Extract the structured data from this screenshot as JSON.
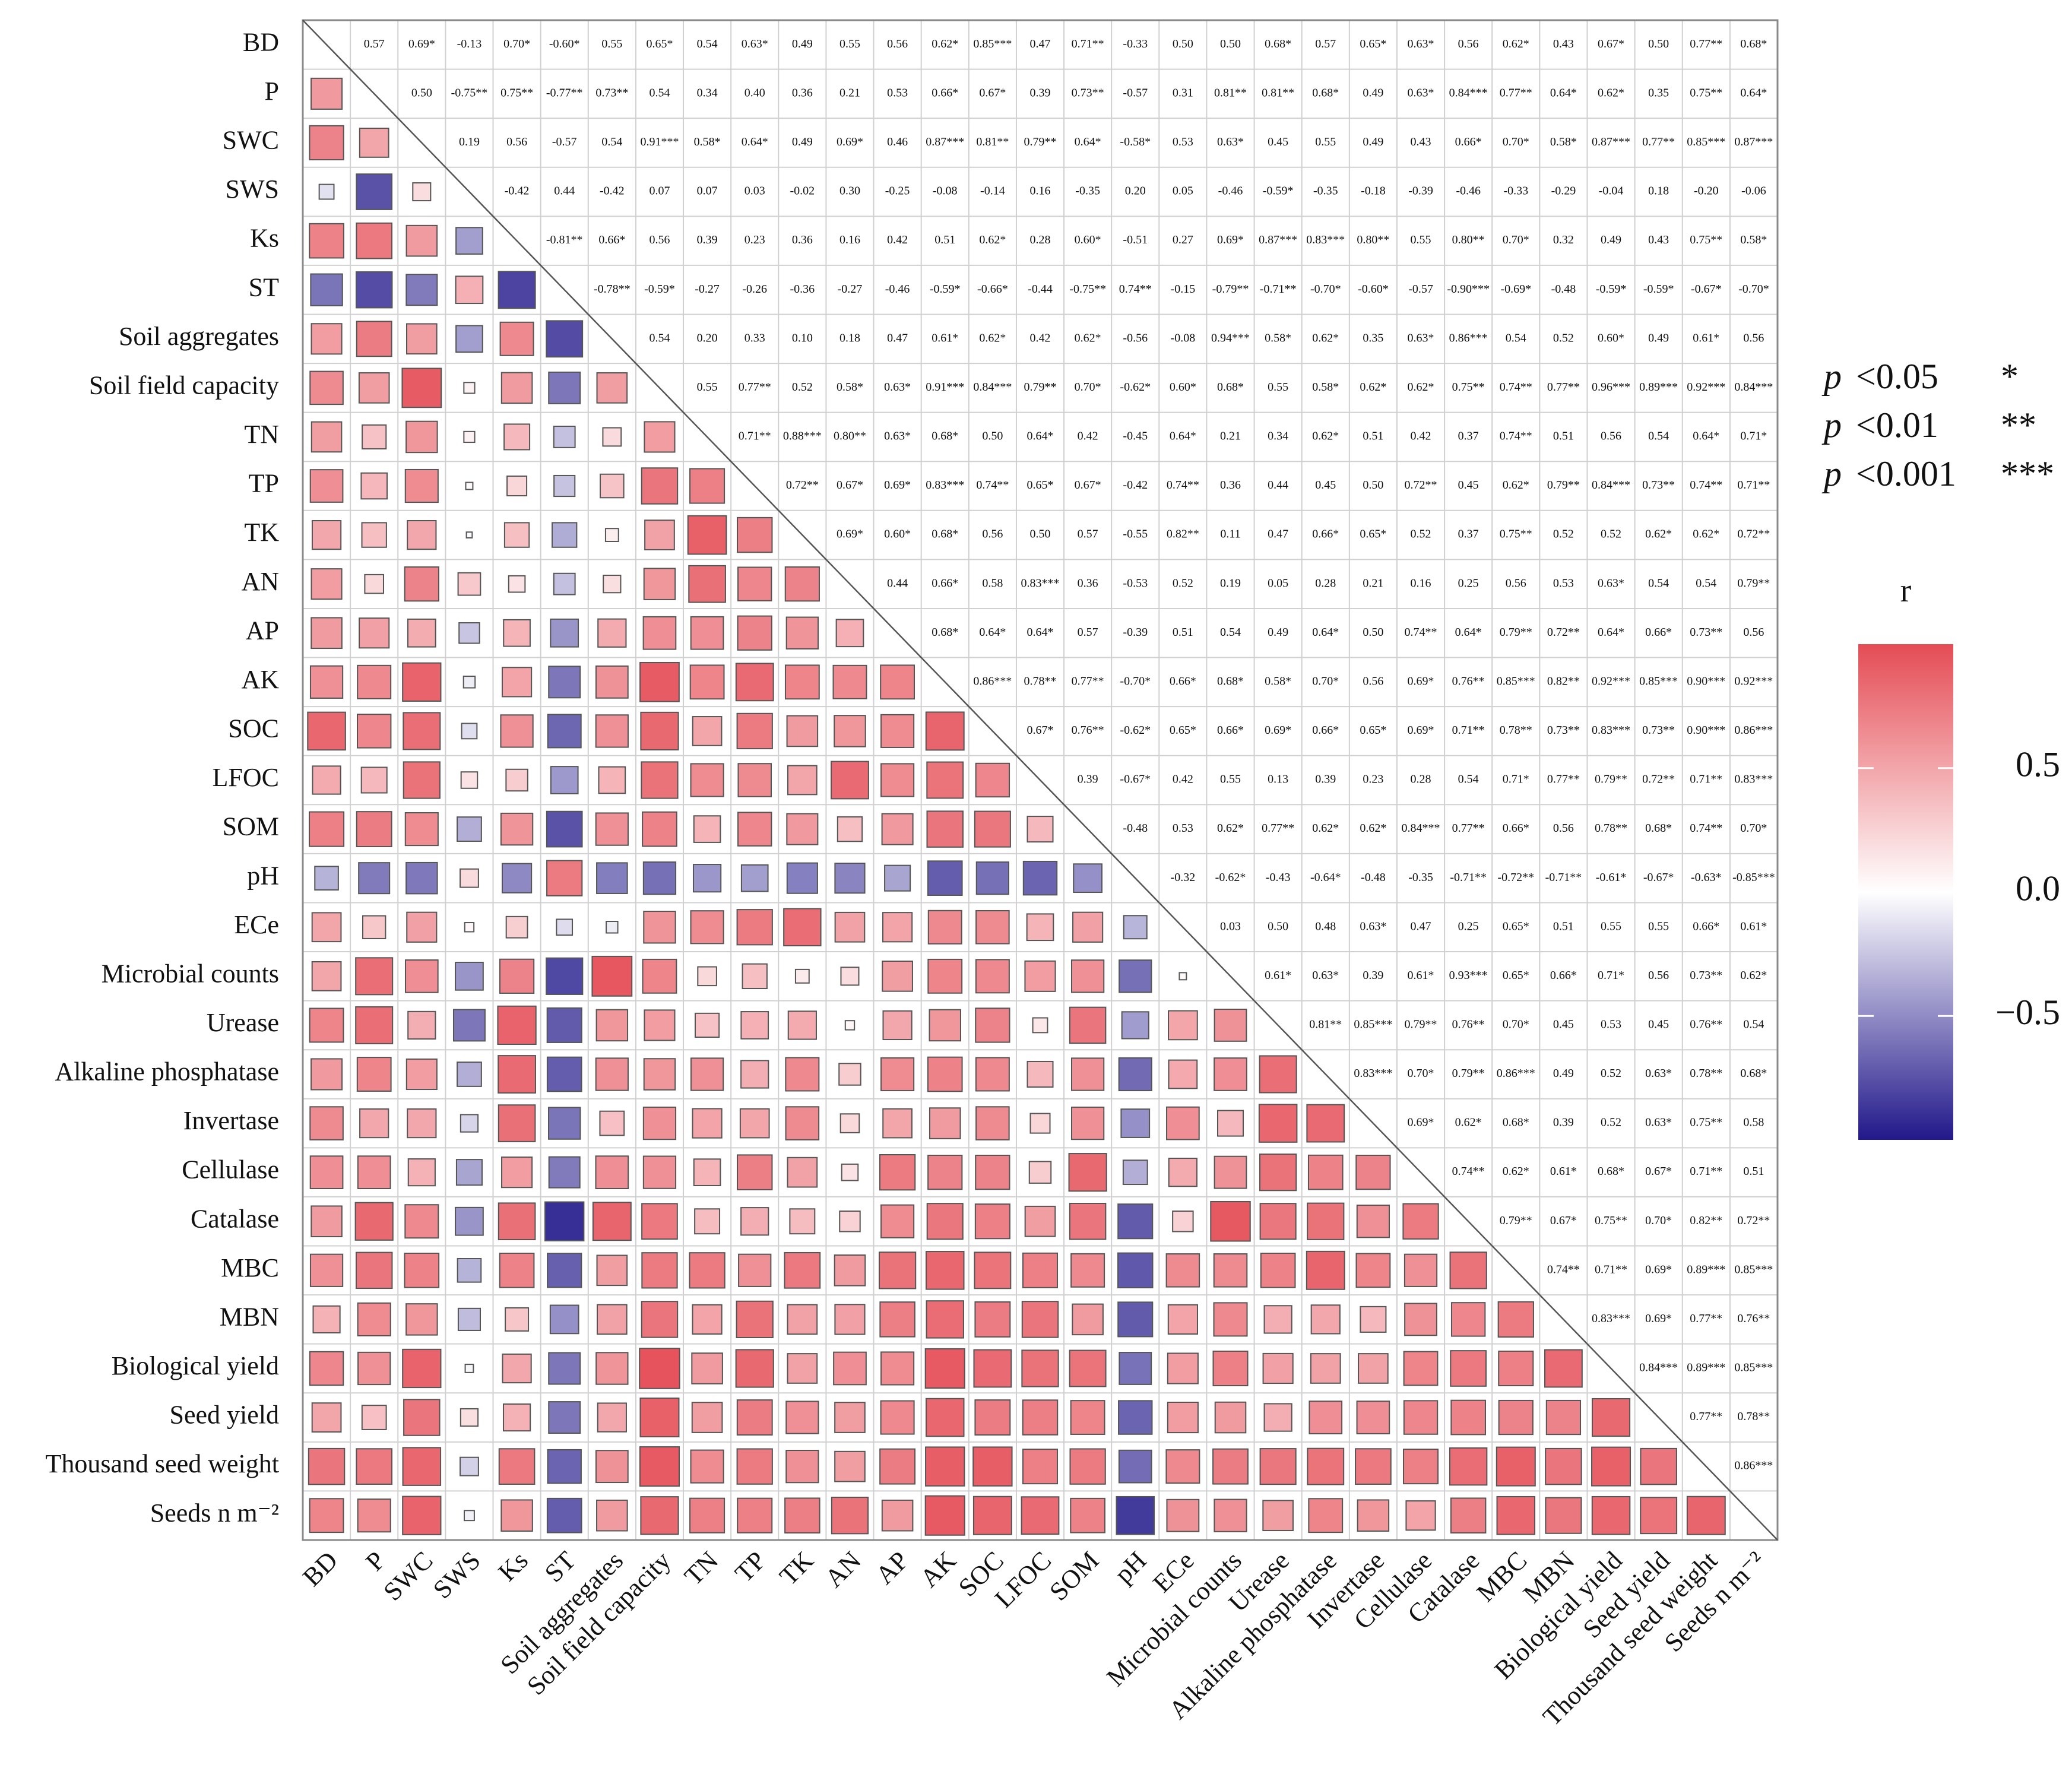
{
  "chart_data": {
    "type": "heatmap",
    "variables": [
      "BD",
      "P",
      "SWC",
      "SWS",
      "Ks",
      "ST",
      "Soil aggregates",
      "Soil field capacity",
      "TN",
      "TP",
      "TK",
      "AN",
      "AP",
      "AK",
      "SOC",
      "LFOC",
      "SOM",
      "pH",
      "ECe",
      "Microbial counts",
      "Urease",
      "Alkaline phosphatase",
      "Invertase",
      "Cellulase",
      "Catalase",
      "MBC",
      "MBN",
      "Biological yield",
      "Seed yield",
      "Thousand seed weight",
      "Seeds n m⁻²"
    ],
    "upper_labels": [
      [
        "0.57",
        "0.69*",
        "-0.13",
        "0.70*",
        "-0.60*",
        "0.55",
        "0.65*",
        "0.54",
        "0.63*",
        "0.49",
        "0.55",
        "0.56",
        "0.62*",
        "0.85***",
        "0.47",
        "0.71**",
        "-0.33",
        "0.50",
        "0.50",
        "0.68*",
        "0.57",
        "0.65*",
        "0.63*",
        "0.56",
        "0.62*",
        "0.43",
        "0.67*",
        "0.50",
        "0.77**",
        "0.68*"
      ],
      [
        "0.50",
        "-0.75**",
        "0.75**",
        "-0.77**",
        "0.73**",
        "0.54",
        "0.34",
        "0.40",
        "0.36",
        "0.21",
        "0.53",
        "0.66*",
        "0.67*",
        "0.39",
        "0.73**",
        "-0.57",
        "0.31",
        "0.81**",
        "0.81**",
        "0.68*",
        "0.49",
        "0.63*",
        "0.84***",
        "0.77**",
        "0.64*",
        "0.62*",
        "0.35",
        "0.75**",
        "0.64*"
      ],
      [
        "0.19",
        "0.56",
        "-0.57",
        "0.54",
        "0.91***",
        "0.58*",
        "0.64*",
        "0.49",
        "0.69*",
        "0.46",
        "0.87***",
        "0.81**",
        "0.79**",
        "0.64*",
        "-0.58*",
        "0.53",
        "0.63*",
        "0.45",
        "0.55",
        "0.49",
        "0.43",
        "0.66*",
        "0.70*",
        "0.58*",
        "0.87***",
        "0.77**",
        "0.85***",
        "0.87***"
      ],
      [
        "-0.42",
        "0.44",
        "-0.42",
        "0.07",
        "0.07",
        "0.03",
        "-0.02",
        "0.30",
        "-0.25",
        "-0.08",
        "-0.14",
        "0.16",
        "-0.35",
        "0.20",
        "0.05",
        "-0.46",
        "-0.59*",
        "-0.35",
        "-0.18",
        "-0.39",
        "-0.46",
        "-0.33",
        "-0.29",
        "-0.04",
        "0.18",
        "-0.20",
        "-0.06"
      ],
      [
        "-0.81**",
        "0.66*",
        "0.56",
        "0.39",
        "0.23",
        "0.36",
        "0.16",
        "0.42",
        "0.51",
        "0.62*",
        "0.28",
        "0.60*",
        "-0.51",
        "0.27",
        "0.69*",
        "0.87***",
        "0.83***",
        "0.80**",
        "0.55",
        "0.80**",
        "0.70*",
        "0.32",
        "0.49",
        "0.43",
        "0.75**",
        "0.58*"
      ],
      [
        "-0.78**",
        "-0.59*",
        "-0.27",
        "-0.26",
        "-0.36",
        "-0.27",
        "-0.46",
        "-0.59*",
        "-0.66*",
        "-0.44",
        "-0.75**",
        "0.74**",
        "-0.15",
        "-0.79**",
        "-0.71**",
        "-0.70*",
        "-0.60*",
        "-0.57",
        "-0.90***",
        "-0.69*",
        "-0.48",
        "-0.59*",
        "-0.59*",
        "-0.67*",
        "-0.70*"
      ],
      [
        "0.54",
        "0.20",
        "0.33",
        "0.10",
        "0.18",
        "0.47",
        "0.61*",
        "0.62*",
        "0.42",
        "0.62*",
        "-0.56",
        "-0.08",
        "0.94***",
        "0.58*",
        "0.62*",
        "0.35",
        "0.63*",
        "0.86***",
        "0.54",
        "0.52",
        "0.60*",
        "0.49",
        "0.61*",
        "0.56"
      ],
      [
        "0.55",
        "0.77**",
        "0.52",
        "0.58*",
        "0.63*",
        "0.91***",
        "0.84***",
        "0.79**",
        "0.70*",
        "-0.62*",
        "0.60*",
        "0.68*",
        "0.55",
        "0.58*",
        "0.62*",
        "0.62*",
        "0.75**",
        "0.74**",
        "0.77**",
        "0.96***",
        "0.89***",
        "0.92***",
        "0.84***"
      ],
      [
        "0.71**",
        "0.88***",
        "0.80**",
        "0.63*",
        "0.68*",
        "0.50",
        "0.64*",
        "0.42",
        "-0.45",
        "0.64*",
        "0.21",
        "0.34",
        "0.62*",
        "0.51",
        "0.42",
        "0.37",
        "0.74**",
        "0.51",
        "0.56",
        "0.54",
        "0.64*",
        "0.71*"
      ],
      [
        "0.72**",
        "0.67*",
        "0.69*",
        "0.83***",
        "0.74**",
        "0.65*",
        "0.67*",
        "-0.42",
        "0.74**",
        "0.36",
        "0.44",
        "0.45",
        "0.50",
        "0.72**",
        "0.45",
        "0.62*",
        "0.79**",
        "0.84***",
        "0.73**",
        "0.74**",
        "0.71**"
      ],
      [
        "0.69*",
        "0.60*",
        "0.68*",
        "0.56",
        "0.50",
        "0.57",
        "-0.55",
        "0.82**",
        "0.11",
        "0.47",
        "0.66*",
        "0.65*",
        "0.52",
        "0.37",
        "0.75**",
        "0.52",
        "0.52",
        "0.62*",
        "0.62*",
        "0.72**"
      ],
      [
        "0.44",
        "0.66*",
        "0.58",
        "0.83***",
        "0.36",
        "-0.53",
        "0.52",
        "0.19",
        "0.05",
        "0.28",
        "0.21",
        "0.16",
        "0.25",
        "0.56",
        "0.53",
        "0.63*",
        "0.54",
        "0.54",
        "0.79**"
      ],
      [
        "0.68*",
        "0.64*",
        "0.64*",
        "0.57",
        "-0.39",
        "0.51",
        "0.54",
        "0.49",
        "0.64*",
        "0.50",
        "0.74**",
        "0.64*",
        "0.79**",
        "0.72**",
        "0.64*",
        "0.66*",
        "0.73**",
        "0.56"
      ],
      [
        "0.86***",
        "0.78**",
        "0.77**",
        "-0.70*",
        "0.66*",
        "0.68*",
        "0.58*",
        "0.70*",
        "0.56",
        "0.69*",
        "0.76**",
        "0.85***",
        "0.82**",
        "0.92***",
        "0.85***",
        "0.90***",
        "0.92***"
      ],
      [
        "0.67*",
        "0.76**",
        "-0.62*",
        "0.65*",
        "0.66*",
        "0.69*",
        "0.66*",
        "0.65*",
        "0.69*",
        "0.71**",
        "0.78**",
        "0.73**",
        "0.83***",
        "0.73**",
        "0.90***",
        "0.86***"
      ],
      [
        "0.39",
        "-0.67*",
        "0.42",
        "0.55",
        "0.13",
        "0.39",
        "0.23",
        "0.28",
        "0.54",
        "0.71*",
        "0.77**",
        "0.79**",
        "0.72**",
        "0.71**",
        "0.83***"
      ],
      [
        "-0.48",
        "0.53",
        "0.62*",
        "0.77**",
        "0.62*",
        "0.62*",
        "0.84***",
        "0.77**",
        "0.66*",
        "0.56",
        "0.78**",
        "0.68*",
        "0.74**",
        "0.70*"
      ],
      [
        "-0.32",
        "-0.62*",
        "-0.43",
        "-0.64*",
        "-0.48",
        "-0.35",
        "-0.71**",
        "-0.72**",
        "-0.71**",
        "-0.61*",
        "-0.67*",
        "-0.63*",
        "-0.85***"
      ],
      [
        "0.03",
        "0.50",
        "0.48",
        "0.63*",
        "0.47",
        "0.25",
        "0.65*",
        "0.51",
        "0.55",
        "0.55",
        "0.66*",
        "0.61*"
      ],
      [
        "0.61*",
        "0.63*",
        "0.39",
        "0.61*",
        "0.93***",
        "0.65*",
        "0.66*",
        "0.71*",
        "0.56",
        "0.73**",
        "0.62*"
      ],
      [
        "0.81**",
        "0.85***",
        "0.79**",
        "0.76**",
        "0.70*",
        "0.45",
        "0.53",
        "0.45",
        "0.76**",
        "0.54"
      ],
      [
        "0.83***",
        "0.70*",
        "0.79**",
        "0.86***",
        "0.49",
        "0.52",
        "0.63*",
        "0.78**",
        "0.68*"
      ],
      [
        "0.69*",
        "0.62*",
        "0.68*",
        "0.39",
        "0.52",
        "0.63*",
        "0.75**",
        "0.58"
      ],
      [
        "0.74**",
        "0.62*",
        "0.61*",
        "0.68*",
        "0.67*",
        "0.71**",
        "0.51"
      ],
      [
        "0.79**",
        "0.67*",
        "0.75**",
        "0.70*",
        "0.82**",
        "0.72**"
      ],
      [
        "0.74**",
        "0.71**",
        "0.69*",
        "0.89***",
        "0.85***"
      ],
      [
        "0.83***",
        "0.69*",
        "0.77**",
        "0.76**"
      ],
      [
        "0.84***",
        "0.89***",
        "0.85***"
      ],
      [
        "0.77**",
        "0.78**"
      ],
      [
        "0.86***"
      ]
    ],
    "significance_legend": [
      {
        "p": "p",
        "op": "<0.05",
        "stars": "*"
      },
      {
        "p": "p",
        "op": "<0.01",
        "stars": "**"
      },
      {
        "p": "p",
        "op": "<0.001",
        "stars": "***"
      }
    ],
    "colorbar": {
      "title": "r",
      "range": [
        -1,
        1
      ],
      "ticks": [
        "0.5",
        "0.0",
        "−0.5"
      ],
      "tick_values": [
        0.5,
        0.0,
        -0.5
      ],
      "low_color": "#22188a",
      "mid_color": "#ffffff",
      "high_color": "#e54c55"
    }
  }
}
